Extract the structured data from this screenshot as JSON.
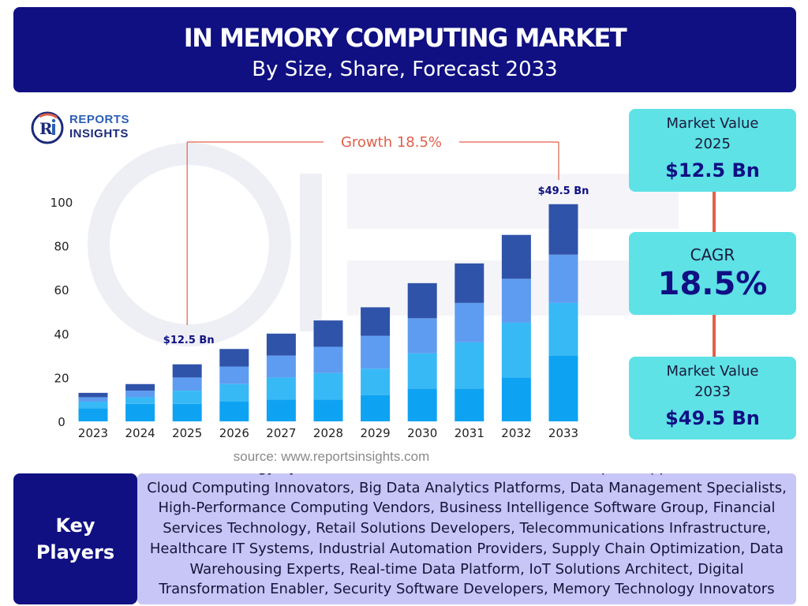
{
  "header": {
    "title": "IN MEMORY COMPUTING MARKET",
    "subtitle": "By Size, Share, Forecast 2033"
  },
  "logo": {
    "line1": "REPORTS",
    "line2": "INSIGHTS"
  },
  "chart_data": {
    "type": "bar",
    "stacked": true,
    "categories": [
      "2023",
      "2024",
      "2025",
      "2026",
      "2027",
      "2028",
      "2029",
      "2030",
      "2031",
      "2032",
      "2033"
    ],
    "series": [
      {
        "values": [
          6,
          8,
          8,
          9,
          10,
          10,
          12,
          15,
          15,
          20,
          30
        ]
      },
      {
        "values": [
          3,
          3,
          6,
          8,
          10,
          12,
          12,
          16,
          21,
          25,
          24
        ]
      },
      {
        "values": [
          2,
          3,
          6,
          8,
          10,
          12,
          15,
          16,
          18,
          20,
          22
        ]
      },
      {
        "values": [
          2,
          3,
          6,
          8,
          10,
          12,
          13,
          16,
          18,
          20,
          23
        ]
      }
    ],
    "colors": [
      "#0ea3f2",
      "#37b9f5",
      "#5e9cf1",
      "#2f53a9"
    ],
    "yticks": [
      0,
      20,
      40,
      60,
      80,
      100
    ],
    "ylim": [
      0,
      110
    ],
    "grid": false,
    "annotations": {
      "growth": "Growth  18.5%",
      "start_label": "$12.5 Bn",
      "end_label": "$49.5 Bn"
    },
    "annotation_color": "#e0604a"
  },
  "side": {
    "box1": {
      "label_line1": "Market Value",
      "label_line2": "2025",
      "value": "$12.5 Bn"
    },
    "box2": {
      "label": "CAGR",
      "value": "18.5%"
    },
    "box3": {
      "label_line1": "Market Value",
      "label_line2": "2033",
      "value": "$49.5 Bn"
    }
  },
  "source": "source: www.reportsinsights.com",
  "key_players": {
    "label_line1": "Key",
    "label_line2": "Players",
    "text": "Global Technology Systems, Database Software Solutions, Enterprise Application Provider, Cloud Computing Innovators, Big Data Analytics Platforms, Data Management Specialists, High-Performance Computing Vendors, Business Intelligence Software Group, Financial Services Technology, Retail Solutions Developers, Telecommunications Infrastructure, Healthcare IT Systems, Industrial Automation Providers, Supply Chain Optimization, Data Warehousing Experts, Real-time Data Platform, IoT Solutions Architect, Digital Transformation Enabler, Security Software Developers, Memory Technology Innovators"
  },
  "colors": {
    "navy": "#101083",
    "cyan_box": "#5ee2e6",
    "lavender": "#c7c6f7",
    "accent_orange": "#e0604a"
  }
}
